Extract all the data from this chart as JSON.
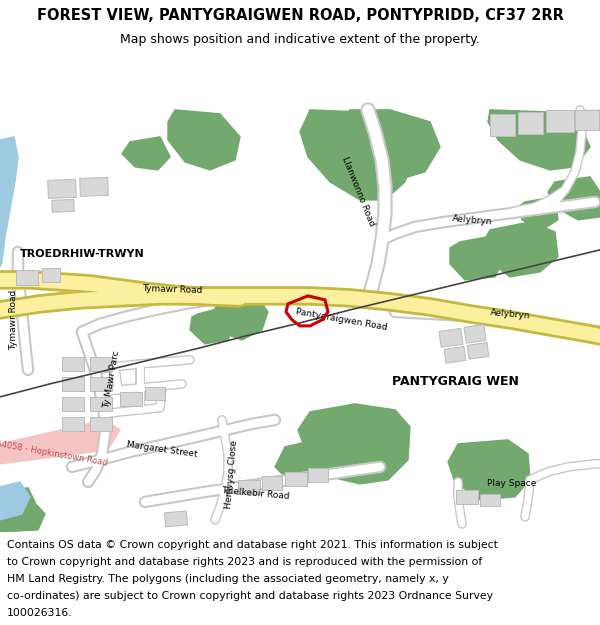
{
  "title_line1": "FOREST VIEW, PANTYGRAIGWEN ROAD, PONTYPRIDD, CF37 2RR",
  "title_line2": "Map shows position and indicative extent of the property.",
  "footer_text": "Contains OS data © Crown copyright and database right 2021. This information is subject to Crown copyright and database rights 2023 and is reproduced with the permission of HM Land Registry. The polygons (including the associated geometry, namely x, y co-ordinates) are subject to Crown copyright and database rights 2023 Ordnance Survey 100026316.",
  "bg_color": "#ffffff",
  "map_bg": "#f2f0eb",
  "road_yellow": "#faf0a0",
  "road_yellow_border": "#c8b840",
  "green_color": "#73a86e",
  "blue_color": "#9ecae1",
  "pink_color": "#f5c5c5",
  "building_color": "#d8d8d8",
  "building_outline": "#bbbbbb",
  "red_plot": "#cc0000",
  "title_fontsize": 10.5,
  "subtitle_fontsize": 9,
  "footer_fontsize": 7.8,
  "label_fontsize": 7,
  "small_label_fontsize": 6.5
}
